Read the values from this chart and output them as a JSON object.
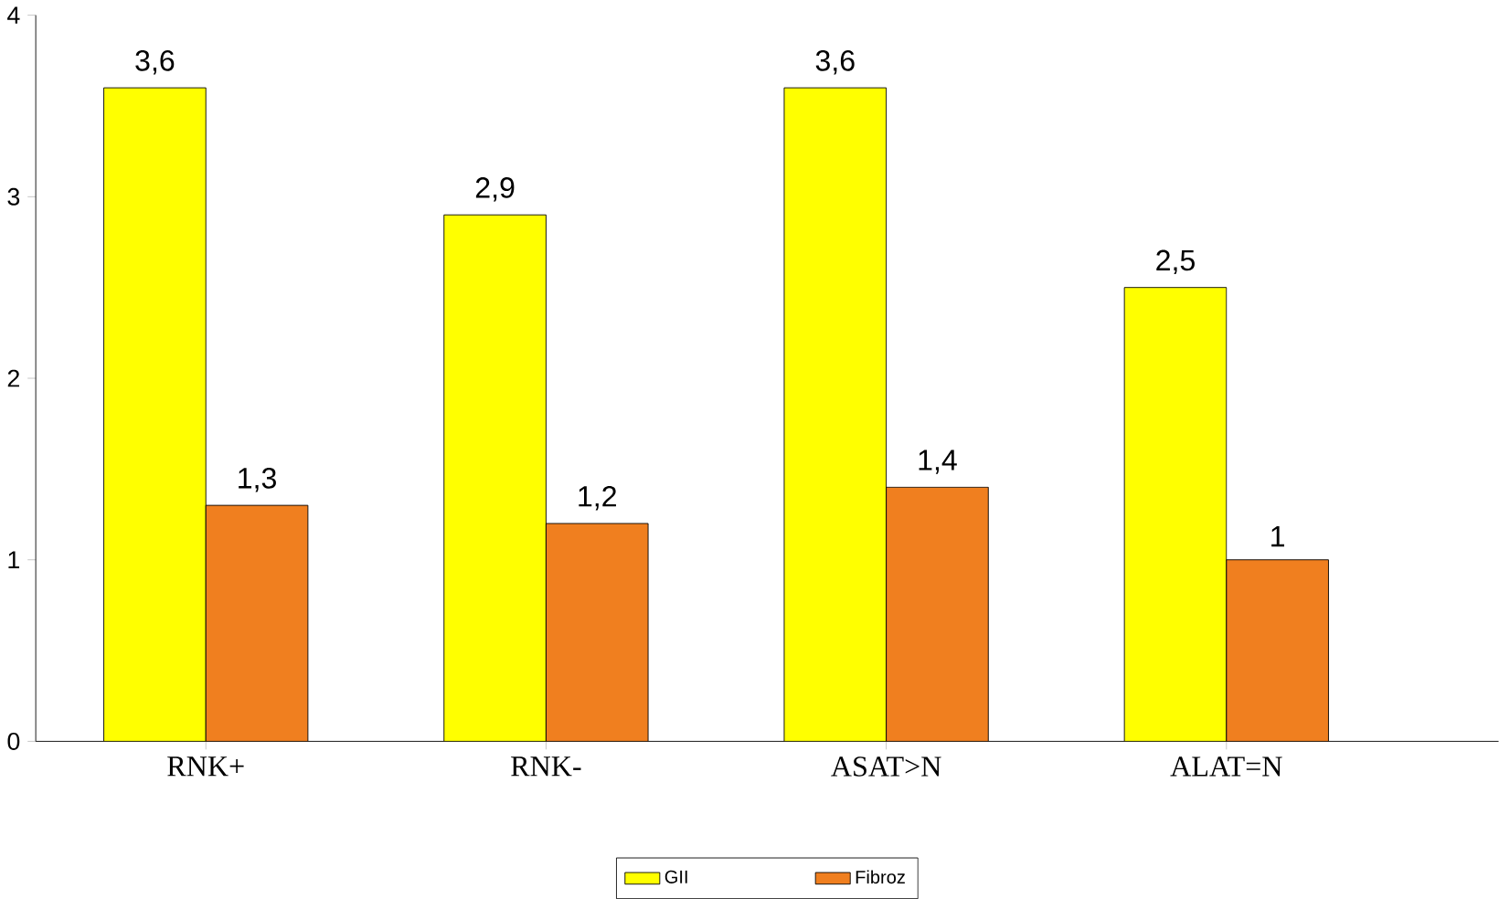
{
  "chart_data": {
    "type": "bar",
    "categories": [
      "RNK+",
      "RNK-",
      "ASAT>N",
      "ALAT=N"
    ],
    "series": [
      {
        "name": "GII",
        "color": "#ffff00",
        "values": [
          3.6,
          2.9,
          3.6,
          2.5
        ],
        "value_labels": [
          "3,6",
          "2,9",
          "3,6",
          "2,5"
        ]
      },
      {
        "name": "Fibroz",
        "color": "#f07f1f",
        "values": [
          1.3,
          1.2,
          1.4,
          1
        ],
        "value_labels": [
          "1,3",
          "1,2",
          "1,4",
          "1"
        ]
      }
    ],
    "ylim": [
      0,
      4
    ],
    "yticks": [
      0,
      1,
      2,
      3,
      4
    ],
    "grid": false,
    "legend": "bottom"
  }
}
